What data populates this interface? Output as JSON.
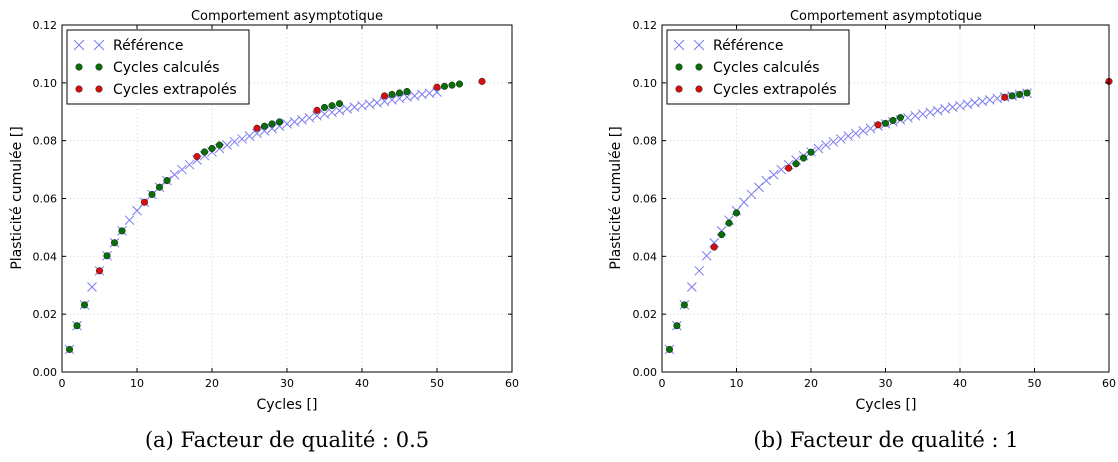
{
  "chart_data": [
    {
      "type": "scatter",
      "title": "Comportement asymptotique",
      "xlabel": "Cycles []",
      "ylabel": "Plasticité cumulée []",
      "xlim": [
        0,
        60
      ],
      "ylim": [
        0,
        0.12
      ],
      "xticks": [
        "0",
        "10",
        "20",
        "30",
        "40",
        "50",
        "60"
      ],
      "yticks": [
        "0.00",
        "0.02",
        "0.04",
        "0.06",
        "0.08",
        "0.10",
        "0.12"
      ],
      "grid": true,
      "legend_position": "top-left",
      "caption": "(a) Facteur de qualité : 0.5",
      "series": [
        {
          "name": "Référence",
          "marker": "x",
          "color": "#7b7bf0",
          "x": [
            1,
            2,
            3,
            4,
            5,
            6,
            7,
            8,
            9,
            10,
            11,
            12,
            13,
            14,
            15,
            16,
            17,
            18,
            19,
            20,
            21,
            22,
            23,
            24,
            25,
            26,
            27,
            28,
            29,
            30,
            31,
            32,
            33,
            34,
            35,
            36,
            37,
            38,
            39,
            40,
            41,
            42,
            43,
            44,
            45,
            46,
            47,
            48,
            49,
            50
          ],
          "y": [
            0.0078,
            0.016,
            0.0232,
            0.0294,
            0.035,
            0.0402,
            0.0447,
            0.0488,
            0.0525,
            0.0558,
            0.0587,
            0.0614,
            0.0639,
            0.0662,
            0.0682,
            0.07,
            0.0717,
            0.0733,
            0.0748,
            0.0761,
            0.0773,
            0.0785,
            0.0796,
            0.0806,
            0.0816,
            0.0825,
            0.0834,
            0.0842,
            0.085,
            0.0858,
            0.0865,
            0.0872,
            0.0879,
            0.0886,
            0.0892,
            0.0898,
            0.0904,
            0.091,
            0.0916,
            0.0921,
            0.0926,
            0.0931,
            0.0936,
            0.0941,
            0.0946,
            0.0951,
            0.0955,
            0.096,
            0.0964,
            0.0968
          ]
        },
        {
          "name": "Cycles calculés",
          "marker": "o",
          "color": "#0a6e0a",
          "x": [
            1,
            2,
            3,
            6,
            7,
            8,
            12,
            13,
            14,
            19,
            20,
            21,
            27,
            28,
            29,
            35,
            36,
            37,
            44,
            45,
            46,
            51,
            52,
            53
          ],
          "y": [
            0.0078,
            0.016,
            0.0232,
            0.0402,
            0.0447,
            0.0488,
            0.0614,
            0.0639,
            0.0662,
            0.0761,
            0.0773,
            0.0785,
            0.085,
            0.0858,
            0.0865,
            0.0915,
            0.0921,
            0.0928,
            0.096,
            0.0965,
            0.097,
            0.0988,
            0.0992,
            0.0996
          ]
        },
        {
          "name": "Cycles extrapolés",
          "marker": "o",
          "color": "#d40f0f",
          "x": [
            5,
            11,
            18,
            26,
            34,
            43,
            50,
            56
          ],
          "y": [
            0.035,
            0.0587,
            0.0745,
            0.0843,
            0.0905,
            0.0955,
            0.0985,
            0.1005
          ]
        }
      ]
    },
    {
      "type": "scatter",
      "title": "Comportement asymptotique",
      "xlabel": "Cycles []",
      "ylabel": "Plasticité cumulée []",
      "xlim": [
        0,
        60
      ],
      "ylim": [
        0,
        0.12
      ],
      "xticks": [
        "0",
        "10",
        "20",
        "30",
        "40",
        "50",
        "60"
      ],
      "yticks": [
        "0.00",
        "0.02",
        "0.04",
        "0.06",
        "0.08",
        "0.10",
        "0.12"
      ],
      "grid": true,
      "legend_position": "top-left",
      "caption": "(b) Facteur de qualité : 1",
      "series": [
        {
          "name": "Référence",
          "marker": "x",
          "color": "#7b7bf0",
          "x": [
            1,
            2,
            3,
            4,
            5,
            6,
            7,
            8,
            9,
            10,
            11,
            12,
            13,
            14,
            15,
            16,
            17,
            18,
            19,
            20,
            21,
            22,
            23,
            24,
            25,
            26,
            27,
            28,
            29,
            30,
            31,
            32,
            33,
            34,
            35,
            36,
            37,
            38,
            39,
            40,
            41,
            42,
            43,
            44,
            45,
            46,
            47,
            48,
            49
          ],
          "y": [
            0.0078,
            0.016,
            0.0232,
            0.0294,
            0.035,
            0.0402,
            0.0447,
            0.0488,
            0.0525,
            0.0558,
            0.0587,
            0.0614,
            0.0639,
            0.0662,
            0.0682,
            0.07,
            0.0717,
            0.0733,
            0.0748,
            0.0761,
            0.0773,
            0.0785,
            0.0796,
            0.0806,
            0.0816,
            0.0825,
            0.0834,
            0.0842,
            0.085,
            0.0858,
            0.0865,
            0.0872,
            0.0879,
            0.0886,
            0.0892,
            0.0898,
            0.0904,
            0.091,
            0.0916,
            0.0921,
            0.0926,
            0.0931,
            0.0936,
            0.0941,
            0.0946,
            0.0951,
            0.0955,
            0.096,
            0.0964
          ]
        },
        {
          "name": "Cycles calculés",
          "marker": "o",
          "color": "#0a6e0a",
          "x": [
            1,
            2,
            3,
            8,
            9,
            10,
            18,
            19,
            20,
            30,
            31,
            32,
            47,
            48,
            49
          ],
          "y": [
            0.0078,
            0.016,
            0.0232,
            0.0475,
            0.0515,
            0.055,
            0.072,
            0.074,
            0.076,
            0.086,
            0.087,
            0.088,
            0.0955,
            0.096,
            0.0965
          ]
        },
        {
          "name": "Cycles extrapolés",
          "marker": "o",
          "color": "#d40f0f",
          "x": [
            7,
            17,
            29,
            46,
            60
          ],
          "y": [
            0.0432,
            0.0705,
            0.0855,
            0.095,
            0.1005
          ]
        }
      ]
    }
  ]
}
